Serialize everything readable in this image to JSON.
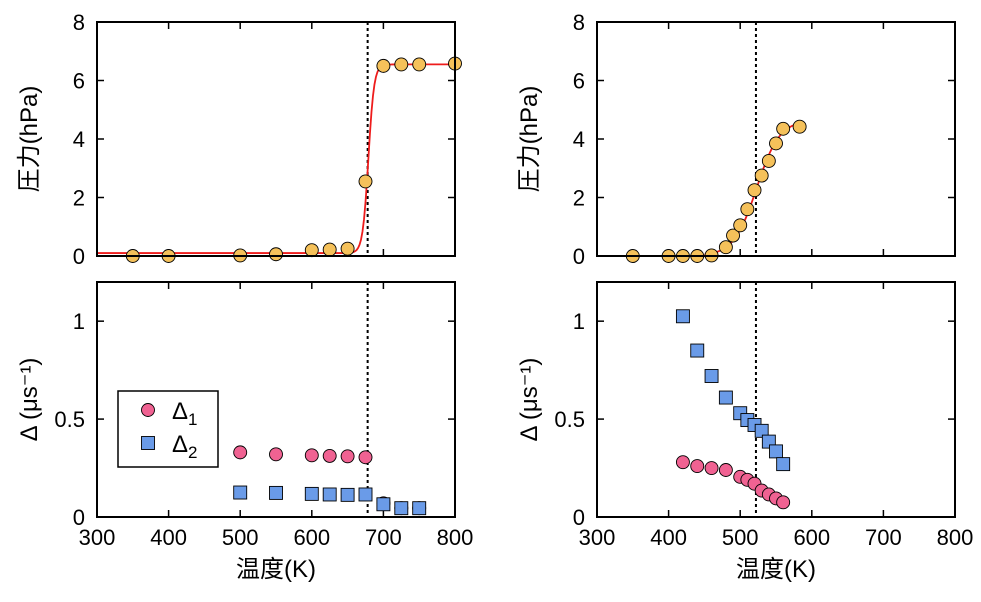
{
  "figure": {
    "shared_xlabel": "温度(K)"
  },
  "legend": {
    "entries": [
      {
        "label": "Δ",
        "sub": "1",
        "marker": "circle",
        "color": "#f06292"
      },
      {
        "label": "Δ",
        "sub": "2",
        "marker": "square",
        "color": "#6a9be8"
      }
    ]
  },
  "colors": {
    "pressure_marker": "#f5c15a",
    "fit_line": "#ee1c1c",
    "delta1": "#f06292",
    "delta2": "#6a9be8",
    "guide_line": "#000000"
  },
  "chart_data": [
    {
      "id": "top-left",
      "type": "scatter",
      "ylabel": "圧力(hPa)",
      "xlabel": "",
      "xlim": [
        300,
        800
      ],
      "ylim": [
        0,
        8
      ],
      "xticks": [
        300,
        400,
        500,
        600,
        700,
        800
      ],
      "yticks": [
        0,
        2,
        4,
        6,
        8
      ],
      "show_xtick_labels": false,
      "grid": false,
      "guide_x": 678,
      "series": [
        {
          "marker": "circle",
          "color": "#f5c15a",
          "points": [
            [
              350,
              0.0
            ],
            [
              400,
              0.0
            ],
            [
              500,
              0.02
            ],
            [
              550,
              0.06
            ],
            [
              600,
              0.2
            ],
            [
              625,
              0.22
            ],
            [
              650,
              0.25
            ],
            [
              675,
              2.55
            ],
            [
              700,
              6.5
            ],
            [
              725,
              6.55
            ],
            [
              750,
              6.55
            ],
            [
              800,
              6.58
            ]
          ]
        }
      ],
      "fit": {
        "kind": "sigmoid",
        "low": 0.1,
        "high": 6.55,
        "center": 679,
        "width": 4,
        "x_range": [
          300,
          800
        ],
        "color": "#ee1c1c"
      }
    },
    {
      "id": "top-right",
      "type": "scatter",
      "ylabel": "圧力(hPa)",
      "xlabel": "",
      "xlim": [
        300,
        800
      ],
      "ylim": [
        0,
        8
      ],
      "xticks": [
        300,
        400,
        500,
        600,
        700,
        800
      ],
      "yticks": [
        0,
        2,
        4,
        6,
        8
      ],
      "show_xtick_labels": false,
      "grid": false,
      "guide_x": 522,
      "series": [
        {
          "marker": "circle",
          "color": "#f5c15a",
          "points": [
            [
              350,
              0.0
            ],
            [
              400,
              0.0
            ],
            [
              420,
              0.0
            ],
            [
              440,
              0.0
            ],
            [
              460,
              0.02
            ],
            [
              480,
              0.3
            ],
            [
              490,
              0.7
            ],
            [
              500,
              1.05
            ],
            [
              510,
              1.6
            ],
            [
              520,
              2.25
            ],
            [
              530,
              2.75
            ],
            [
              540,
              3.25
            ],
            [
              550,
              3.85
            ],
            [
              560,
              4.35
            ],
            [
              583,
              4.42
            ]
          ]
        }
      ],
      "fit": {
        "kind": "sigmoid",
        "low": 0.0,
        "high": 4.65,
        "center": 523,
        "width": 16,
        "x_range": [
          450,
          583
        ],
        "color": "#ee1c1c"
      }
    },
    {
      "id": "bottom-left",
      "type": "scatter",
      "ylabel": "Δ (μs⁻¹)",
      "xlabel": "温度(K)",
      "xlim": [
        300,
        800
      ],
      "ylim": [
        0,
        1.2
      ],
      "xticks": [
        300,
        400,
        500,
        600,
        700,
        800
      ],
      "yticks": [
        0,
        0.5,
        1
      ],
      "ytick_labels": [
        "0",
        "0.5",
        "1"
      ],
      "show_xtick_labels": true,
      "grid": false,
      "guide_x": 678,
      "legend_position": "lower-left",
      "series": [
        {
          "name": "Δ1",
          "marker": "circle",
          "color": "#f06292",
          "points": [
            [
              500,
              0.33
            ],
            [
              550,
              0.32
            ],
            [
              600,
              0.315
            ],
            [
              625,
              0.312
            ],
            [
              650,
              0.31
            ],
            [
              675,
              0.305
            ],
            [
              700,
              0.07
            ],
            [
              725,
              0.045
            ],
            [
              750,
              0.045
            ]
          ]
        },
        {
          "name": "Δ2",
          "marker": "square",
          "color": "#6a9be8",
          "points": [
            [
              500,
              0.125
            ],
            [
              550,
              0.123
            ],
            [
              600,
              0.118
            ],
            [
              625,
              0.115
            ],
            [
              650,
              0.113
            ],
            [
              675,
              0.115
            ],
            [
              700,
              0.065
            ],
            [
              725,
              0.045
            ],
            [
              750,
              0.045
            ]
          ]
        }
      ]
    },
    {
      "id": "bottom-right",
      "type": "scatter",
      "ylabel": "Δ (μs⁻¹)",
      "xlabel": "温度(K)",
      "xlim": [
        300,
        800
      ],
      "ylim": [
        0,
        1.2
      ],
      "xticks": [
        300,
        400,
        500,
        600,
        700,
        800
      ],
      "yticks": [
        0,
        0.5,
        1
      ],
      "ytick_labels": [
        "0",
        "0.5",
        "1"
      ],
      "show_xtick_labels": true,
      "grid": false,
      "guide_x": 522,
      "series": [
        {
          "name": "Δ1",
          "marker": "circle",
          "color": "#f06292",
          "points": [
            [
              420,
              0.28
            ],
            [
              440,
              0.26
            ],
            [
              460,
              0.25
            ],
            [
              480,
              0.24
            ],
            [
              500,
              0.205
            ],
            [
              510,
              0.19
            ],
            [
              520,
              0.17
            ],
            [
              530,
              0.135
            ],
            [
              540,
              0.115
            ],
            [
              550,
              0.095
            ],
            [
              560,
              0.075
            ]
          ]
        },
        {
          "name": "Δ2",
          "marker": "square",
          "color": "#6a9be8",
          "points": [
            [
              420,
              1.025
            ],
            [
              440,
              0.85
            ],
            [
              460,
              0.72
            ],
            [
              480,
              0.61
            ],
            [
              500,
              0.53
            ],
            [
              510,
              0.495
            ],
            [
              520,
              0.47
            ],
            [
              530,
              0.44
            ],
            [
              540,
              0.385
            ],
            [
              550,
              0.335
            ],
            [
              560,
              0.27
            ]
          ]
        }
      ]
    }
  ]
}
